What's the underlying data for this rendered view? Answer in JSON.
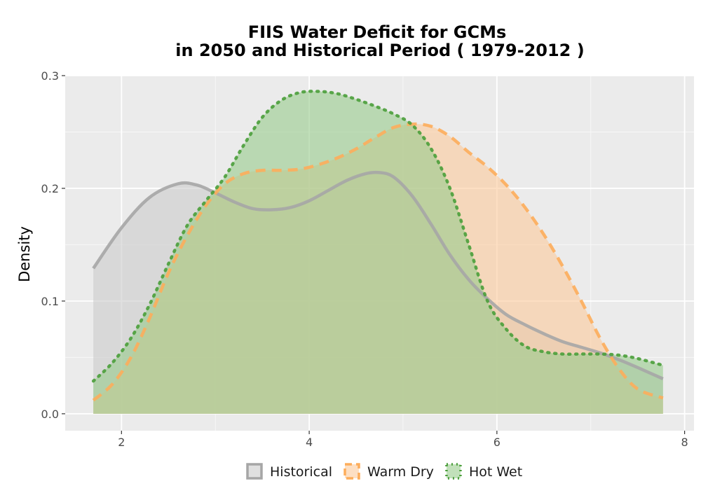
{
  "chart_data": {
    "type": "area",
    "title_lines": [
      "FIIS  Water Deficit for GCMs",
      "in 2050 and Historical Period ( 1979-2012 )"
    ],
    "xlabel": "",
    "ylabel": "Density",
    "xlim": [
      1.4,
      8.1
    ],
    "ylim": [
      -0.015,
      0.3
    ],
    "x_ticks": [
      2,
      4,
      6,
      8
    ],
    "x_tick_labels": [
      "2",
      "4",
      "6",
      "8"
    ],
    "y_ticks": [
      0.0,
      0.1,
      0.2,
      0.3
    ],
    "y_tick_labels": [
      "0.0",
      "0.1",
      "0.2",
      "0.3"
    ],
    "x_minor_ticks": [
      3,
      5,
      7
    ],
    "y_minor_ticks": [
      0.05,
      0.15,
      0.25
    ],
    "grid": true,
    "legend_position": "bottom",
    "series": [
      {
        "name": "Historical",
        "line_style": "solid",
        "line_color": "#a6a6a6",
        "fill_color": "#cccccc",
        "points": [
          [
            1.7,
            0.129
          ],
          [
            2.0,
            0.165
          ],
          [
            2.3,
            0.192
          ],
          [
            2.6,
            0.204
          ],
          [
            2.8,
            0.203
          ],
          [
            3.0,
            0.196
          ],
          [
            3.2,
            0.188
          ],
          [
            3.4,
            0.182
          ],
          [
            3.6,
            0.181
          ],
          [
            3.8,
            0.183
          ],
          [
            4.0,
            0.189
          ],
          [
            4.2,
            0.198
          ],
          [
            4.4,
            0.207
          ],
          [
            4.6,
            0.213
          ],
          [
            4.75,
            0.214
          ],
          [
            4.9,
            0.21
          ],
          [
            5.1,
            0.193
          ],
          [
            5.3,
            0.168
          ],
          [
            5.5,
            0.141
          ],
          [
            5.7,
            0.119
          ],
          [
            5.9,
            0.102
          ],
          [
            6.1,
            0.088
          ],
          [
            6.3,
            0.079
          ],
          [
            6.5,
            0.071
          ],
          [
            6.7,
            0.064
          ],
          [
            6.9,
            0.059
          ],
          [
            7.1,
            0.054
          ],
          [
            7.3,
            0.048
          ],
          [
            7.5,
            0.041
          ],
          [
            7.77,
            0.031
          ]
        ]
      },
      {
        "name": "Warm Dry",
        "line_style": "dashed",
        "line_color": "#fdad5b",
        "fill_color": "#fcc99b",
        "points": [
          [
            1.7,
            0.012
          ],
          [
            1.9,
            0.026
          ],
          [
            2.1,
            0.05
          ],
          [
            2.3,
            0.085
          ],
          [
            2.5,
            0.125
          ],
          [
            2.7,
            0.158
          ],
          [
            2.9,
            0.185
          ],
          [
            3.1,
            0.204
          ],
          [
            3.3,
            0.213
          ],
          [
            3.5,
            0.216
          ],
          [
            3.7,
            0.216
          ],
          [
            3.9,
            0.217
          ],
          [
            4.1,
            0.221
          ],
          [
            4.3,
            0.227
          ],
          [
            4.5,
            0.235
          ],
          [
            4.7,
            0.245
          ],
          [
            4.9,
            0.254
          ],
          [
            5.1,
            0.257
          ],
          [
            5.3,
            0.255
          ],
          [
            5.5,
            0.246
          ],
          [
            5.7,
            0.232
          ],
          [
            5.9,
            0.219
          ],
          [
            6.1,
            0.203
          ],
          [
            6.3,
            0.183
          ],
          [
            6.5,
            0.159
          ],
          [
            6.7,
            0.131
          ],
          [
            6.9,
            0.1
          ],
          [
            7.1,
            0.067
          ],
          [
            7.3,
            0.04
          ],
          [
            7.5,
            0.022
          ],
          [
            7.77,
            0.014
          ]
        ]
      },
      {
        "name": "Hot Wet",
        "line_style": "dotted",
        "line_color": "#4a9e3a",
        "fill_color": "#98cc8c",
        "points": [
          [
            1.7,
            0.029
          ],
          [
            1.9,
            0.045
          ],
          [
            2.1,
            0.067
          ],
          [
            2.3,
            0.097
          ],
          [
            2.5,
            0.133
          ],
          [
            2.7,
            0.167
          ],
          [
            2.9,
            0.189
          ],
          [
            3.1,
            0.21
          ],
          [
            3.3,
            0.238
          ],
          [
            3.5,
            0.263
          ],
          [
            3.7,
            0.278
          ],
          [
            3.9,
            0.285
          ],
          [
            4.1,
            0.286
          ],
          [
            4.3,
            0.284
          ],
          [
            4.5,
            0.279
          ],
          [
            4.7,
            0.273
          ],
          [
            4.9,
            0.266
          ],
          [
            5.1,
            0.256
          ],
          [
            5.3,
            0.235
          ],
          [
            5.5,
            0.2
          ],
          [
            5.7,
            0.15
          ],
          [
            5.9,
            0.1
          ],
          [
            6.1,
            0.075
          ],
          [
            6.3,
            0.06
          ],
          [
            6.5,
            0.055
          ],
          [
            6.7,
            0.053
          ],
          [
            6.9,
            0.053
          ],
          [
            7.1,
            0.053
          ],
          [
            7.3,
            0.052
          ],
          [
            7.5,
            0.049
          ],
          [
            7.77,
            0.043
          ]
        ]
      }
    ]
  }
}
